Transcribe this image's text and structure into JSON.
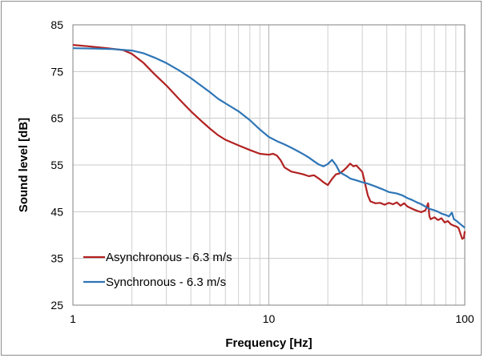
{
  "chart_data": {
    "type": "line",
    "xlabel": "Frequency [Hz]",
    "ylabel": "Sound level [dB]",
    "x_scale": "log",
    "xlim": [
      1,
      100
    ],
    "ylim": [
      25,
      85
    ],
    "y_ticks": [
      25,
      35,
      45,
      55,
      65,
      75,
      85
    ],
    "x_ticks": [
      1,
      10,
      100
    ],
    "x_tick_labels": [
      "1",
      "10",
      "100"
    ],
    "grid": true,
    "legend_position": "bottom-left",
    "series": [
      {
        "name": "Asynchronous - 6.3 m/s",
        "color": "#b22222",
        "points": [
          [
            1,
            80.7
          ],
          [
            1.2,
            80.4
          ],
          [
            1.5,
            80.0
          ],
          [
            1.8,
            79.6
          ],
          [
            2,
            78.8
          ],
          [
            2.3,
            76.8
          ],
          [
            2.6,
            74.5
          ],
          [
            3,
            72.0
          ],
          [
            3.5,
            69.0
          ],
          [
            4,
            66.5
          ],
          [
            4.5,
            64.5
          ],
          [
            5,
            62.8
          ],
          [
            5.5,
            61.4
          ],
          [
            6,
            60.4
          ],
          [
            7,
            59.2
          ],
          [
            8,
            58.2
          ],
          [
            9,
            57.4
          ],
          [
            10,
            57.2
          ],
          [
            10.5,
            57.4
          ],
          [
            11,
            57.0
          ],
          [
            11.5,
            56.0
          ],
          [
            12,
            54.5
          ],
          [
            13,
            53.6
          ],
          [
            14,
            53.3
          ],
          [
            15,
            53.0
          ],
          [
            16,
            52.6
          ],
          [
            17,
            52.8
          ],
          [
            18,
            52.1
          ],
          [
            19,
            51.3
          ],
          [
            20,
            50.7
          ],
          [
            21,
            52.0
          ],
          [
            22,
            53.0
          ],
          [
            23,
            53.2
          ],
          [
            24,
            53.8
          ],
          [
            25,
            54.5
          ],
          [
            26,
            55.3
          ],
          [
            27,
            54.7
          ],
          [
            28,
            54.9
          ],
          [
            29,
            54.2
          ],
          [
            30,
            53.5
          ],
          [
            31,
            51.0
          ],
          [
            32,
            48.5
          ],
          [
            33,
            47.2
          ],
          [
            35,
            46.8
          ],
          [
            37,
            46.9
          ],
          [
            39,
            46.5
          ],
          [
            41,
            46.9
          ],
          [
            43,
            46.6
          ],
          [
            45,
            47.0
          ],
          [
            47,
            46.3
          ],
          [
            49,
            46.8
          ],
          [
            51,
            46.1
          ],
          [
            54,
            45.6
          ],
          [
            57,
            45.2
          ],
          [
            60,
            44.9
          ],
          [
            63,
            45.3
          ],
          [
            65,
            46.8
          ],
          [
            66,
            44.0
          ],
          [
            67,
            43.4
          ],
          [
            70,
            43.8
          ],
          [
            73,
            43.2
          ],
          [
            76,
            43.6
          ],
          [
            79,
            42.7
          ],
          [
            82,
            43.0
          ],
          [
            85,
            42.3
          ],
          [
            88,
            42.0
          ],
          [
            91,
            41.8
          ],
          [
            93,
            41.5
          ],
          [
            95,
            40.3
          ],
          [
            97,
            39.2
          ],
          [
            99,
            39.4
          ],
          [
            100,
            40.8
          ]
        ]
      },
      {
        "name": "Synchronous - 6.3 m/s",
        "color": "#2e75b6",
        "points": [
          [
            1,
            80.0
          ],
          [
            1.3,
            79.9
          ],
          [
            1.6,
            79.8
          ],
          [
            2,
            79.5
          ],
          [
            2.3,
            78.9
          ],
          [
            2.6,
            78.0
          ],
          [
            3,
            76.8
          ],
          [
            3.5,
            75.2
          ],
          [
            4,
            73.6
          ],
          [
            4.5,
            72.0
          ],
          [
            5,
            70.6
          ],
          [
            5.5,
            69.2
          ],
          [
            6,
            68.2
          ],
          [
            7,
            66.5
          ],
          [
            8,
            64.6
          ],
          [
            9,
            62.6
          ],
          [
            10,
            61.0
          ],
          [
            11,
            60.1
          ],
          [
            12,
            59.4
          ],
          [
            13,
            58.7
          ],
          [
            14,
            58.0
          ],
          [
            15,
            57.3
          ],
          [
            16,
            56.6
          ],
          [
            17,
            55.8
          ],
          [
            18,
            55.1
          ],
          [
            19,
            54.7
          ],
          [
            20,
            55.2
          ],
          [
            21,
            56.1
          ],
          [
            22,
            55.0
          ],
          [
            23,
            53.5
          ],
          [
            24,
            53.0
          ],
          [
            25,
            52.6
          ],
          [
            26,
            52.1
          ],
          [
            28,
            51.7
          ],
          [
            30,
            51.3
          ],
          [
            32,
            51.0
          ],
          [
            35,
            50.4
          ],
          [
            38,
            49.8
          ],
          [
            41,
            49.2
          ],
          [
            45,
            48.9
          ],
          [
            48,
            48.5
          ],
          [
            51,
            47.9
          ],
          [
            54,
            47.5
          ],
          [
            57,
            47.0
          ],
          [
            60,
            46.6
          ],
          [
            63,
            46.1
          ],
          [
            66,
            45.6
          ],
          [
            70,
            45.3
          ],
          [
            73,
            45.0
          ],
          [
            76,
            44.6
          ],
          [
            80,
            44.3
          ],
          [
            83,
            44.0
          ],
          [
            86,
            44.8
          ],
          [
            88,
            43.4
          ],
          [
            91,
            43.0
          ],
          [
            94,
            42.5
          ],
          [
            97,
            42.0
          ],
          [
            100,
            41.6
          ]
        ]
      }
    ]
  }
}
